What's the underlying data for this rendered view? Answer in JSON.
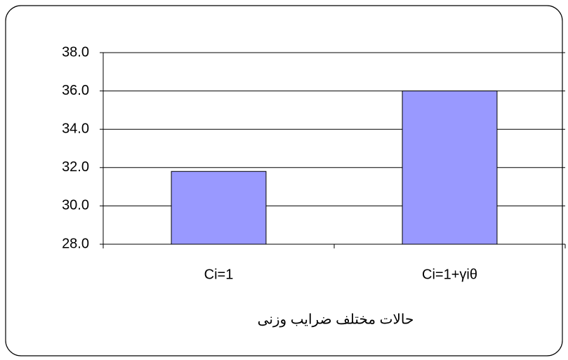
{
  "chart_data": {
    "type": "bar",
    "x_label": "حالات مختلف ضرایب وزنی",
    "categories": [
      "Ci=1",
      "Ci=1+γiθ"
    ],
    "values": [
      31.8,
      36.0
    ],
    "color": "#9999ff",
    "ylim": [
      28,
      38
    ],
    "yticks": [
      {
        "value": 28,
        "label": "28.0"
      },
      {
        "value": 30,
        "label": "30.0"
      },
      {
        "value": 32,
        "label": "32.0"
      },
      {
        "value": 34,
        "label": "34.0"
      },
      {
        "value": 36,
        "label": "36.0"
      },
      {
        "value": 38,
        "label": "38.0"
      }
    ],
    "grid": true
  }
}
